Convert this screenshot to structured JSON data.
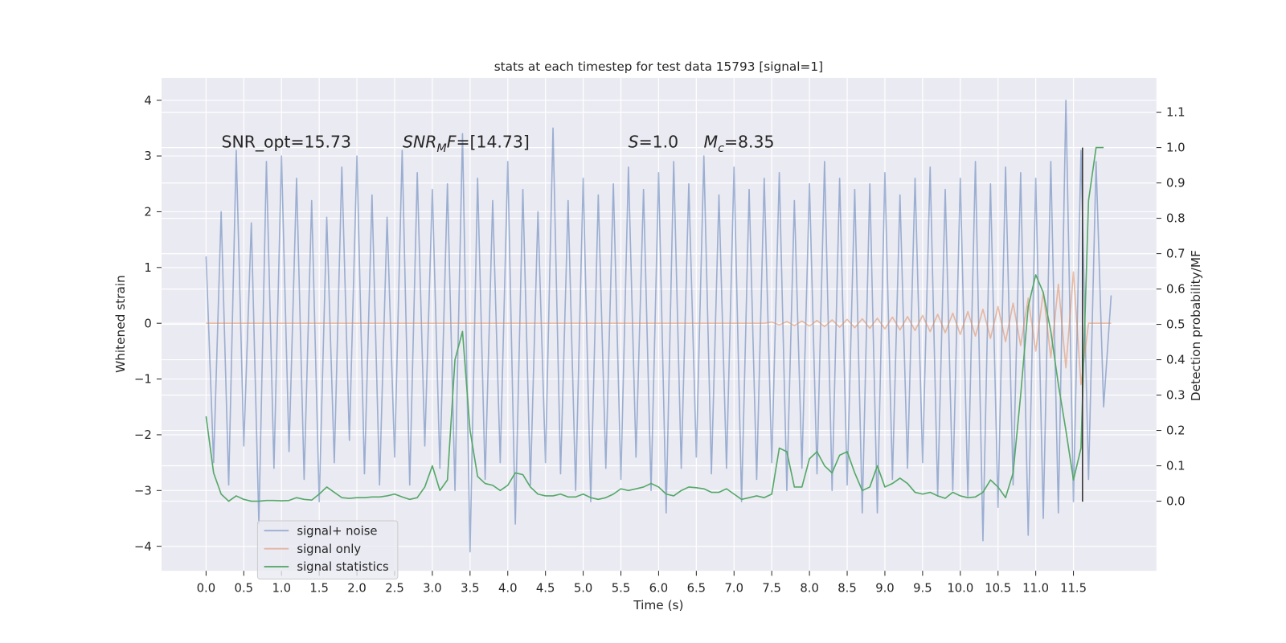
{
  "chart_data": {
    "type": "line",
    "title": "stats at each timestep for test data 15793 [signal=1]",
    "x_label": "Time (s)",
    "y_label": "Whitened strain",
    "y2_label": "Detection probability/MF",
    "annotations": [
      [
        "SNR_opt=15.73"
      ],
      [
        {
          "text": "SNR",
          "style": "italic"
        },
        {
          "text": "M",
          "style": "italic-sub"
        },
        {
          "text": "F",
          "style": "italic"
        },
        "=[14.73]"
      ],
      [
        {
          "text": "S",
          "style": "italic"
        },
        "=1.0"
      ],
      [
        {
          "text": "M",
          "style": "italic"
        },
        {
          "text": "c",
          "style": "italic-sub"
        },
        "=8.35"
      ]
    ],
    "x": [
      0,
      0.1,
      0.2,
      0.3,
      0.4,
      0.5,
      0.6,
      0.7,
      0.8,
      0.9,
      1,
      1.1,
      1.2,
      1.3,
      1.4,
      1.5,
      1.6,
      1.7,
      1.8,
      1.9,
      2,
      2.1,
      2.2,
      2.3,
      2.4,
      2.5,
      2.6,
      2.7,
      2.8,
      2.9,
      3,
      3.1,
      3.2,
      3.3,
      3.4,
      3.5,
      3.6,
      3.7,
      3.8,
      3.9,
      4,
      4.1,
      4.2,
      4.3,
      4.4,
      4.5,
      4.6,
      4.7,
      4.8,
      4.9,
      5,
      5.1,
      5.2,
      5.3,
      5.4,
      5.5,
      5.6,
      5.7,
      5.8,
      5.9,
      6,
      6.1,
      6.2,
      6.3,
      6.4,
      6.5,
      6.6,
      6.7,
      6.8,
      6.9,
      7,
      7.1,
      7.2,
      7.3,
      7.4,
      7.5,
      7.6,
      7.7,
      7.8,
      7.9,
      8,
      8.1,
      8.2,
      8.3,
      8.4,
      8.5,
      8.6,
      8.7,
      8.8,
      8.9,
      9,
      9.1,
      9.2,
      9.3,
      9.4,
      9.5,
      9.6,
      9.7,
      9.8,
      9.9,
      10,
      10.1,
      10.2,
      10.3,
      10.4,
      10.5,
      10.6,
      10.7,
      10.8,
      10.9,
      11,
      11.1,
      11.2,
      11.3,
      11.4,
      11.5,
      11.6,
      11.7,
      11.8,
      11.9,
      12
    ],
    "series": [
      {
        "name": "signal+ noise",
        "color": "#4c72b0",
        "opacity": 0.5,
        "values": [
          1.2,
          -2.5,
          2.0,
          -2.9,
          3.1,
          -2.2,
          1.8,
          -3.6,
          2.9,
          -2.6,
          3.0,
          -2.3,
          2.6,
          -2.8,
          2.2,
          -3.2,
          1.9,
          -2.5,
          2.8,
          -2.1,
          3.0,
          -2.7,
          2.3,
          -2.9,
          1.9,
          -2.4,
          3.1,
          -2.9,
          2.7,
          -2.2,
          2.4,
          -2.6,
          2.5,
          -3.0,
          3.4,
          -4.1,
          2.6,
          -2.8,
          2.2,
          -2.5,
          2.9,
          -3.6,
          2.4,
          -2.9,
          2.0,
          -2.5,
          3.5,
          -2.7,
          2.2,
          -3.0,
          2.6,
          -3.2,
          2.3,
          -2.6,
          2.5,
          -2.8,
          2.8,
          -2.4,
          2.4,
          -3.0,
          2.7,
          -3.4,
          2.9,
          -2.6,
          2.5,
          -2.4,
          3.0,
          -2.7,
          2.3,
          -2.6,
          2.8,
          -3.2,
          2.4,
          -2.8,
          2.6,
          -2.5,
          2.7,
          -3.0,
          2.2,
          -2.6,
          2.5,
          -2.7,
          2.9,
          -3.0,
          2.6,
          -2.9,
          2.4,
          -3.4,
          2.5,
          -3.4,
          2.7,
          -2.8,
          2.3,
          -2.6,
          2.6,
          -2.5,
          2.8,
          -3.1,
          2.4,
          -3.0,
          2.6,
          -3.1,
          2.9,
          -3.9,
          2.5,
          -3.3,
          2.8,
          -2.9,
          2.7,
          -3.8,
          2.6,
          -3.5,
          2.9,
          -3.4,
          4.0,
          -3.2,
          3.1,
          -2.8,
          2.9,
          -1.5,
          0.5
        ]
      },
      {
        "name": "signal only",
        "color": "#dd8452",
        "opacity": 0.5,
        "values": [
          0,
          0,
          0,
          0,
          0,
          0,
          0,
          0,
          0,
          0,
          0,
          0,
          0,
          0,
          0,
          0,
          0,
          0,
          0,
          0,
          0,
          0,
          0,
          0,
          0,
          0,
          0,
          0,
          0,
          0,
          0,
          0,
          0,
          0,
          0,
          0,
          0,
          0,
          0,
          0,
          0,
          0,
          0,
          0,
          0,
          0,
          0,
          0,
          0,
          0,
          0,
          0,
          0,
          0,
          0,
          0,
          0,
          0,
          0,
          0,
          0,
          0,
          0,
          0,
          0,
          0,
          0,
          0,
          0,
          0,
          0,
          0,
          0,
          0,
          0,
          0.02,
          -0.03,
          0.03,
          -0.04,
          0.04,
          -0.05,
          0.05,
          -0.06,
          0.06,
          -0.07,
          0.07,
          -0.08,
          0.08,
          -0.09,
          0.09,
          -0.1,
          0.11,
          -0.12,
          0.12,
          -0.13,
          0.14,
          -0.15,
          0.16,
          -0.17,
          0.18,
          -0.2,
          0.21,
          -0.23,
          0.25,
          -0.27,
          0.3,
          -0.33,
          0.36,
          -0.4,
          0.45,
          -0.5,
          0.56,
          -0.62,
          0.7,
          -0.8,
          0.92,
          -1.1,
          0,
          0,
          0,
          0
        ]
      },
      {
        "name": "signal statistics",
        "color": "#55a868",
        "opacity": 1,
        "axis": "y2",
        "values": [
          0.24,
          0.08,
          0.02,
          0.0,
          0.015,
          0.005,
          0.0,
          0.0,
          0.002,
          0.002,
          0.001,
          0.002,
          0.01,
          0.005,
          0.003,
          0.02,
          0.04,
          0.025,
          0.01,
          0.008,
          0.01,
          0.01,
          0.012,
          0.012,
          0.015,
          0.02,
          0.012,
          0.005,
          0.01,
          0.04,
          0.1,
          0.03,
          0.06,
          0.4,
          0.48,
          0.2,
          0.07,
          0.05,
          0.045,
          0.03,
          0.045,
          0.08,
          0.075,
          0.04,
          0.02,
          0.015,
          0.015,
          0.02,
          0.012,
          0.012,
          0.02,
          0.01,
          0.005,
          0.01,
          0.02,
          0.035,
          0.03,
          0.035,
          0.04,
          0.05,
          0.04,
          0.02,
          0.015,
          0.03,
          0.04,
          0.038,
          0.035,
          0.025,
          0.025,
          0.035,
          0.02,
          0.005,
          0.01,
          0.015,
          0.01,
          0.02,
          0.15,
          0.14,
          0.04,
          0.04,
          0.12,
          0.14,
          0.1,
          0.08,
          0.13,
          0.14,
          0.08,
          0.03,
          0.04,
          0.1,
          0.04,
          0.05,
          0.065,
          0.05,
          0.025,
          0.02,
          0.025,
          0.015,
          0.008,
          0.025,
          0.015,
          0.01,
          0.012,
          0.025,
          0.06,
          0.04,
          0.01,
          0.08,
          0.3,
          0.55,
          0.64,
          0.59,
          0.48,
          0.33,
          0.2,
          0.06,
          0.15,
          0.85,
          1.0,
          1.0,
          null
        ]
      }
    ],
    "vlines": [
      {
        "x": 11.62,
        "ymin": -3.2,
        "ymax": 3.15,
        "color": "#3a3a3a"
      }
    ],
    "xlim": [
      -0.59,
      12.6
    ],
    "ylim": [
      -4.44,
      4.4
    ],
    "y2lim": [
      -0.197,
      1.197
    ],
    "xticks": [
      {
        "value": 0,
        "label": "0.0"
      },
      0.5,
      {
        "value": 1,
        "label": "1.0"
      },
      1.5,
      {
        "value": 2,
        "label": "2.0"
      },
      2.5,
      {
        "value": 3,
        "label": "3.0"
      },
      3.5,
      {
        "value": 4,
        "label": "4.0"
      },
      4.5,
      {
        "value": 5,
        "label": "5.0"
      },
      5.5,
      {
        "value": 6,
        "label": "6.0"
      },
      6.5,
      {
        "value": 7,
        "label": "7.0"
      },
      7.5,
      {
        "value": 8,
        "label": "8.0"
      },
      8.5,
      {
        "value": 9,
        "label": "9.0"
      },
      9.5,
      {
        "value": 10,
        "label": "10.0"
      },
      10.5,
      {
        "value": 11,
        "label": "11.0"
      },
      11.5
    ],
    "yticks": [
      {
        "value": -4,
        "label": "−4"
      },
      {
        "value": -3,
        "label": "−3"
      },
      {
        "value": -2,
        "label": "−2"
      },
      {
        "value": -1,
        "label": "−1"
      },
      0,
      1,
      2,
      3,
      4
    ],
    "y2ticks": [
      {
        "value": 0,
        "label": "0.0"
      },
      0.1,
      0.2,
      0.3,
      0.4,
      0.5,
      0.6,
      0.7,
      0.8,
      0.9,
      {
        "value": 1,
        "label": "1.0"
      },
      1.1
    ],
    "grid": true,
    "legend": "lower left"
  }
}
